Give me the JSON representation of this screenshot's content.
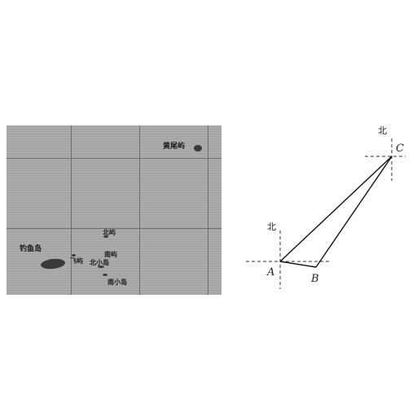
{
  "map": {
    "labels": {
      "diaoyu": "钓鱼岛",
      "feiyu": "飞屿",
      "beiyu": "北屿",
      "nanyu": "南屿",
      "beixiao": "北小岛",
      "nanxiao": "南小岛",
      "huangwei": "黄尾屿"
    }
  },
  "diagram": {
    "point_a": "A",
    "point_b": "B",
    "point_c": "C",
    "north_a": "北",
    "north_c": "北"
  }
}
